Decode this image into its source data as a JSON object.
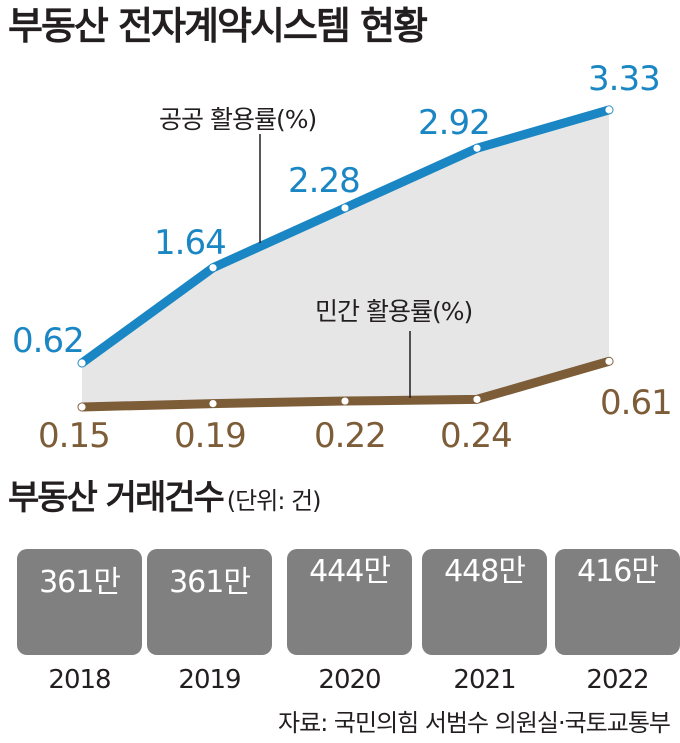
{
  "title": "부동산 전자계약시스템 현황",
  "chart_data": [
    {
      "type": "line",
      "x": [
        "2018",
        "2019",
        "2020",
        "2021",
        "2022"
      ],
      "series": [
        {
          "name": "공공 활용률(%)",
          "values": [
            0.62,
            1.64,
            2.28,
            2.92,
            3.33
          ],
          "labels": [
            "0.62",
            "1.64",
            "2.28",
            "2.92",
            "3.33"
          ],
          "color": "#1b86c4"
        },
        {
          "name": "민간 활용률(%)",
          "values": [
            0.15,
            0.19,
            0.22,
            0.24,
            0.61
          ],
          "labels": [
            "0.15",
            "0.19",
            "0.22",
            "0.24",
            "0.61"
          ],
          "color": "#7d5c38"
        }
      ],
      "area_fill": "#e6e6e6",
      "grid": false,
      "legend": "inline callouts"
    },
    {
      "type": "bar",
      "title": "부동산 거래건수",
      "unit": "(단위: 건)",
      "categories": [
        "2018",
        "2019",
        "2020",
        "2021",
        "2022"
      ],
      "values": [
        3610000,
        3610000,
        4440000,
        4480000,
        4160000
      ],
      "labels": [
        "361만",
        "361만",
        "444만",
        "448만",
        "416만"
      ],
      "color": "#808080"
    }
  ],
  "source": "자료: 국민의힘 서범수 의원실·국토교통부"
}
